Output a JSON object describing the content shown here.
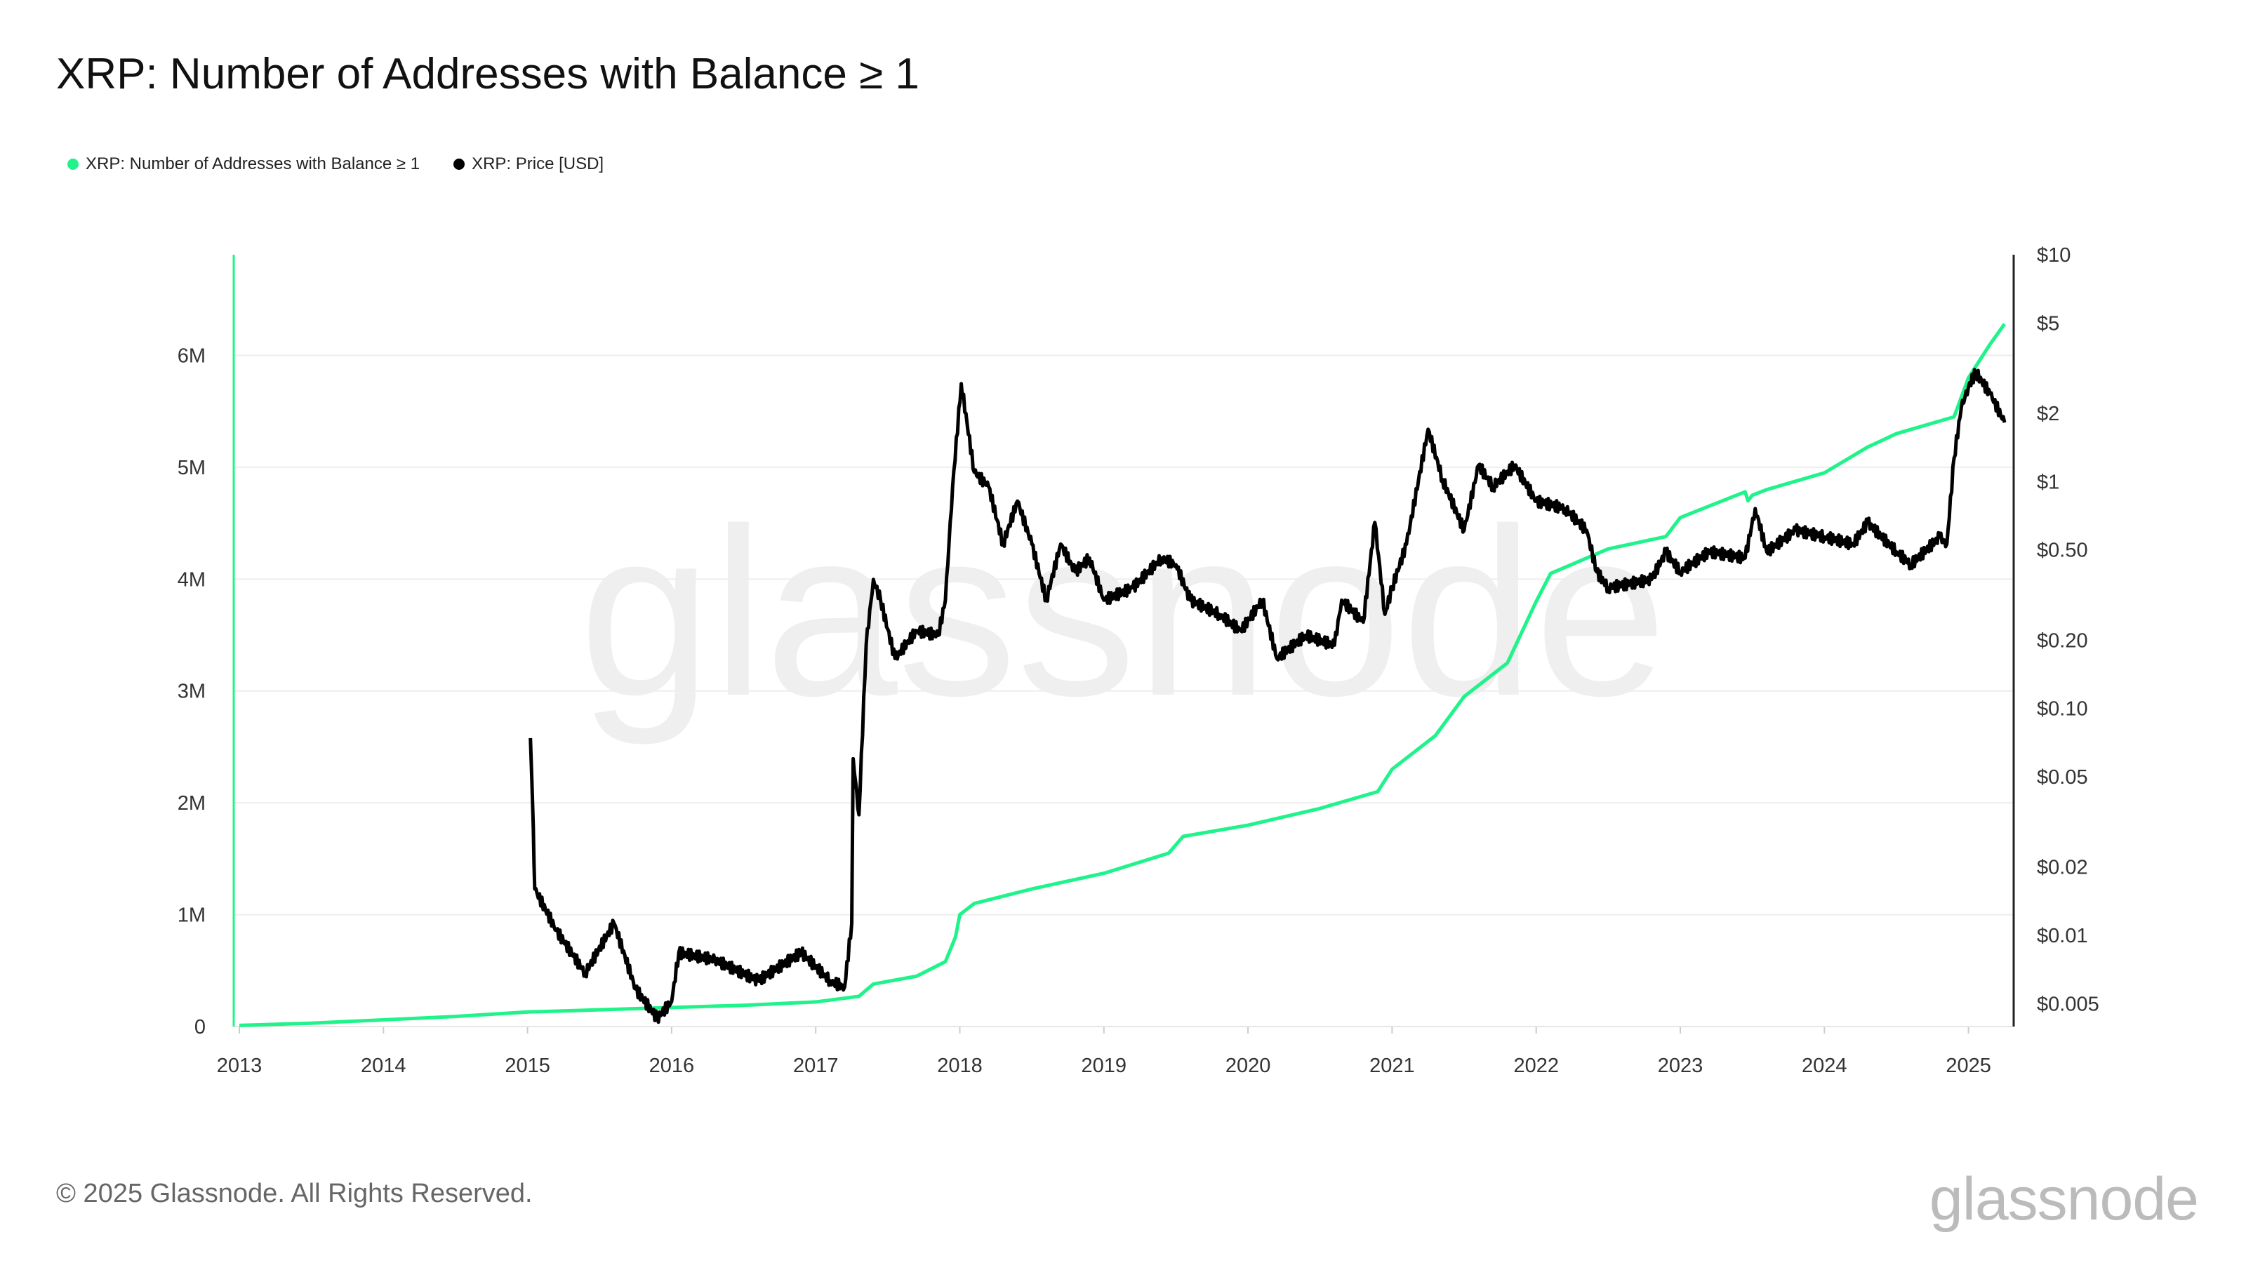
{
  "title": "XRP: Number of Addresses with Balance ≥ 1",
  "footer": "© 2025 Glassnode. All Rights Reserved.",
  "logo": "glassnode",
  "watermark": "glassnode",
  "chart_data": {
    "type": "line",
    "title": "XRP: Number of Addresses with Balance ≥ 1",
    "legend_position": "top-left",
    "grid": true,
    "colors": {
      "addresses": "#1ff38a",
      "price": "#000000"
    },
    "x_ticks": [
      "2013",
      "2014",
      "2015",
      "2016",
      "2017",
      "2018",
      "2019",
      "2020",
      "2021",
      "2022",
      "2023",
      "2024",
      "2025"
    ],
    "x_range": [
      2013,
      2025.33
    ],
    "y_left": {
      "ticks": [
        0,
        1,
        2,
        3,
        4,
        5,
        6
      ],
      "tick_labels": [
        "0",
        "1M",
        "2M",
        "3M",
        "4M",
        "5M",
        "6M"
      ],
      "range_millions": [
        0,
        6.9
      ]
    },
    "y_right": {
      "scale": "log",
      "ticks": [
        10,
        5,
        2,
        1,
        0.5,
        0.2,
        0.1,
        0.05,
        0.02,
        0.01,
        0.005
      ],
      "tick_labels": [
        "$10",
        "$5",
        "$2",
        "$1",
        "$0.50",
        "$0.20",
        "$0.10",
        "$0.05",
        "$0.02",
        "$0.01",
        "$0.005"
      ],
      "range": [
        0.00396,
        10
      ]
    },
    "series": [
      {
        "name": "XRP: Number of Addresses with Balance ≥ 1",
        "axis": "left",
        "unit": "millions",
        "x": [
          2013.0,
          2013.5,
          2014.0,
          2014.5,
          2015.0,
          2015.5,
          2016.0,
          2016.5,
          2017.0,
          2017.3,
          2017.4,
          2017.7,
          2017.9,
          2017.97,
          2018.0,
          2018.1,
          2018.5,
          2019.0,
          2019.45,
          2019.55,
          2020.0,
          2020.5,
          2020.9,
          2021.0,
          2021.3,
          2021.5,
          2021.8,
          2022.0,
          2022.1,
          2022.5,
          2022.9,
          2023.0,
          2023.45,
          2023.47,
          2023.5,
          2023.6,
          2024.0,
          2024.3,
          2024.5,
          2024.9,
          2025.0,
          2025.15,
          2025.25
        ],
        "values": [
          0.01,
          0.03,
          0.06,
          0.09,
          0.13,
          0.15,
          0.17,
          0.19,
          0.22,
          0.27,
          0.38,
          0.45,
          0.58,
          0.8,
          1.0,
          1.1,
          1.23,
          1.37,
          1.55,
          1.7,
          1.8,
          1.95,
          2.1,
          2.3,
          2.6,
          2.95,
          3.25,
          3.8,
          4.05,
          4.27,
          4.38,
          4.55,
          4.78,
          4.7,
          4.75,
          4.8,
          4.95,
          5.18,
          5.3,
          5.45,
          5.8,
          6.1,
          6.28
        ]
      },
      {
        "name": "XRP: Price [USD]",
        "axis": "right",
        "unit": "USD",
        "x": [
          2015.02,
          2015.04,
          2015.05,
          2015.2,
          2015.4,
          2015.6,
          2015.75,
          2015.9,
          2016.0,
          2016.05,
          2016.3,
          2016.6,
          2016.9,
          2017.1,
          2017.2,
          2017.25,
          2017.26,
          2017.3,
          2017.35,
          2017.4,
          2017.45,
          2017.55,
          2017.7,
          2017.85,
          2017.9,
          2017.95,
          2018.01,
          2018.1,
          2018.2,
          2018.3,
          2018.4,
          2018.5,
          2018.6,
          2018.7,
          2018.8,
          2018.9,
          2019.0,
          2019.2,
          2019.4,
          2019.5,
          2019.6,
          2019.8,
          2019.95,
          2020.1,
          2020.2,
          2020.4,
          2020.6,
          2020.65,
          2020.8,
          2020.88,
          2020.95,
          2021.0,
          2021.1,
          2021.25,
          2021.35,
          2021.5,
          2021.6,
          2021.7,
          2021.85,
          2022.0,
          2022.2,
          2022.35,
          2022.42,
          2022.5,
          2022.8,
          2022.9,
          2023.0,
          2023.2,
          2023.45,
          2023.52,
          2023.6,
          2023.8,
          2024.0,
          2024.2,
          2024.3,
          2024.5,
          2024.6,
          2024.8,
          2024.85,
          2024.9,
          2024.95,
          2025.0,
          2025.05,
          2025.15,
          2025.25
        ],
        "values": [
          0.074,
          0.03,
          0.016,
          0.0105,
          0.0068,
          0.0113,
          0.0058,
          0.0043,
          0.0051,
          0.0084,
          0.0078,
          0.0063,
          0.0084,
          0.0063,
          0.0059,
          0.0113,
          0.06,
          0.034,
          0.19,
          0.37,
          0.3,
          0.166,
          0.22,
          0.21,
          0.3,
          0.95,
          2.7,
          1.1,
          0.95,
          0.53,
          0.82,
          0.53,
          0.3,
          0.53,
          0.4,
          0.46,
          0.3,
          0.34,
          0.46,
          0.43,
          0.3,
          0.26,
          0.22,
          0.3,
          0.166,
          0.21,
          0.19,
          0.3,
          0.24,
          0.66,
          0.26,
          0.34,
          0.53,
          1.7,
          1.02,
          0.61,
          1.18,
          0.95,
          1.18,
          0.82,
          0.76,
          0.61,
          0.4,
          0.34,
          0.37,
          0.49,
          0.4,
          0.49,
          0.46,
          0.76,
          0.49,
          0.61,
          0.57,
          0.53,
          0.66,
          0.49,
          0.43,
          0.57,
          0.53,
          1.27,
          2.11,
          2.62,
          3.03,
          2.44,
          1.82
        ]
      }
    ]
  }
}
